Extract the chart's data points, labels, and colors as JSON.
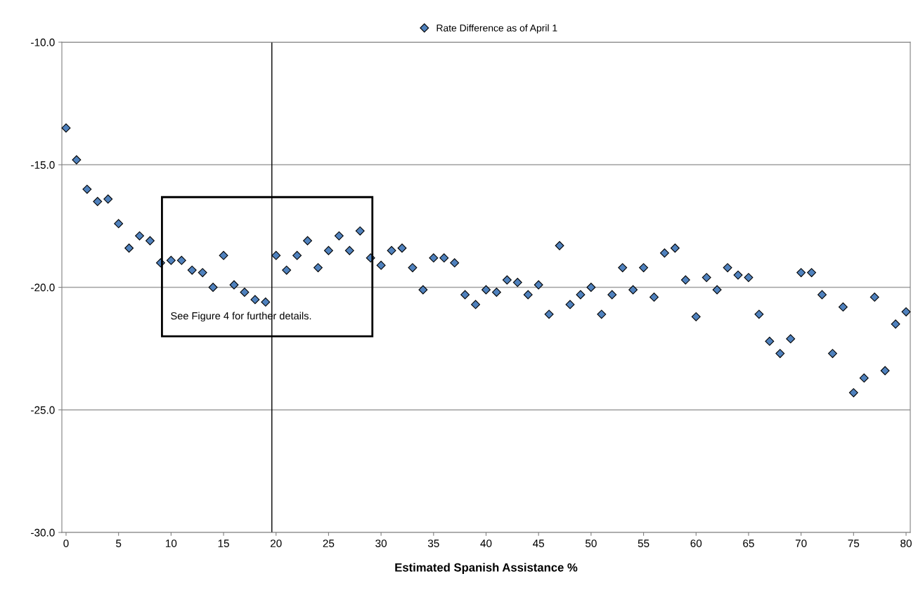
{
  "chart_data": {
    "type": "scatter",
    "xlabel": "Estimated Spanish Assistance %",
    "x": [
      0,
      1,
      2,
      3,
      4,
      5,
      6,
      7,
      8,
      9,
      10,
      11,
      12,
      13,
      14,
      15,
      16,
      17,
      18,
      19,
      20,
      21,
      22,
      23,
      24,
      25,
      26,
      27,
      28,
      29,
      30,
      31,
      32,
      33,
      34,
      35,
      36,
      37,
      38,
      39,
      40,
      41,
      42,
      43,
      44,
      45,
      46,
      47,
      48,
      49,
      50,
      51,
      52,
      53,
      54,
      55,
      56,
      57,
      58,
      59,
      60,
      61,
      62,
      63,
      64,
      65,
      66,
      67,
      68,
      69,
      70,
      71,
      72,
      73,
      74,
      75,
      76,
      77,
      78,
      79,
      80
    ],
    "series": [
      {
        "name": "Rate Difference as of April 1",
        "color": "#4f81bd",
        "values": [
          -13.5,
          -14.8,
          -16.0,
          -16.5,
          -16.4,
          -17.4,
          -18.4,
          -17.9,
          -18.1,
          -19.0,
          -18.9,
          -18.9,
          -19.3,
          -19.4,
          -20.0,
          -18.7,
          -19.9,
          -20.2,
          -20.5,
          -20.6,
          -18.7,
          -19.3,
          -18.7,
          -18.1,
          -19.2,
          -18.5,
          -17.9,
          -18.5,
          -17.7,
          -18.8,
          -19.1,
          -18.5,
          -18.4,
          -19.2,
          -20.1,
          -18.8,
          -18.8,
          -19.0,
          -20.3,
          -20.7,
          -20.1,
          -20.2,
          -19.7,
          -19.8,
          -20.3,
          -19.9,
          -21.1,
          -18.3,
          -20.7,
          -20.3,
          -20.0,
          -21.1,
          -20.3,
          -19.2,
          -20.1,
          -19.2,
          -20.4,
          -18.6,
          -18.4,
          -19.7,
          -21.2,
          -19.6,
          -20.1,
          -19.2,
          -19.5,
          -19.6,
          -21.1,
          -22.2,
          -22.7,
          -22.1,
          -19.4,
          -19.4,
          -20.3,
          -22.7,
          -20.8,
          -24.3,
          -23.7,
          -20.4,
          -23.4,
          -21.5,
          -21.0
        ]
      }
    ],
    "xlim": [
      -0.4,
      80.4
    ],
    "ylim": [
      -30,
      -10
    ],
    "xticks": [
      0,
      5,
      10,
      15,
      20,
      25,
      30,
      35,
      40,
      45,
      50,
      55,
      60,
      65,
      70,
      75,
      80
    ],
    "yticks": [
      {
        "value": -30,
        "label": "-30.0"
      },
      {
        "value": -25,
        "label": "-25.0"
      },
      {
        "value": -20,
        "label": "-20.0"
      },
      {
        "value": -15,
        "label": "-15.0"
      },
      {
        "value": -10,
        "label": "-10.0"
      }
    ],
    "grid": "y",
    "legend": "top",
    "marker": "diamond",
    "ref_lines": [
      {
        "axis": "x",
        "value": 19.6,
        "color": "#000000"
      }
    ],
    "annotations": [
      "See Figure 4 for further details."
    ]
  }
}
